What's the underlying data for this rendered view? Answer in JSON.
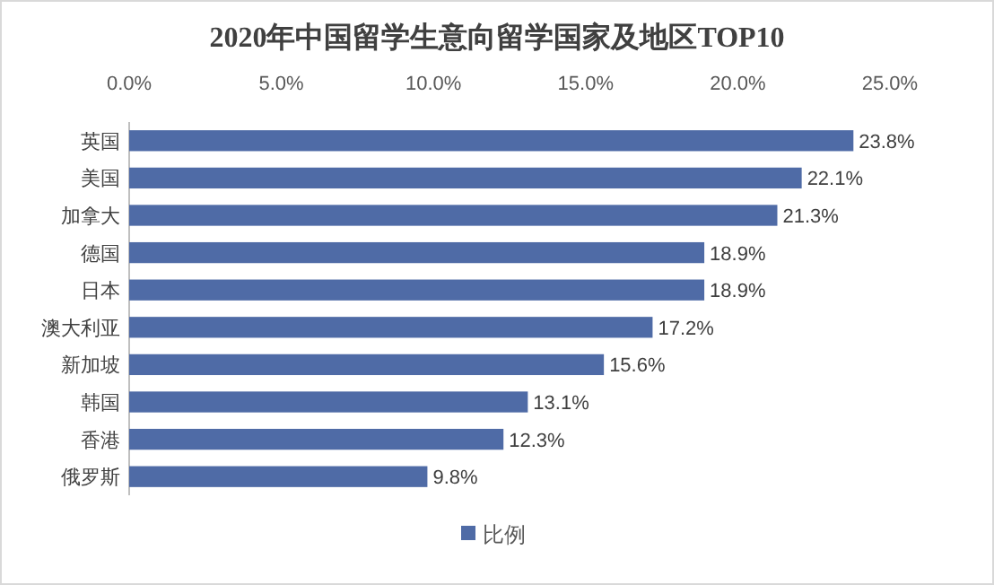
{
  "chart_data": {
    "type": "bar",
    "orientation": "horizontal",
    "title": "2020年中国留学生意向留学国家及地区TOP10",
    "categories": [
      "英国",
      "美国",
      "加拿大",
      "德国",
      "日本",
      "澳大利亚",
      "新加坡",
      "韩国",
      "香港",
      "俄罗斯"
    ],
    "series": [
      {
        "name": "比例",
        "color": "#4f6ba6",
        "values": [
          23.8,
          22.1,
          21.3,
          18.9,
          18.9,
          17.2,
          15.6,
          13.1,
          12.3,
          9.8
        ],
        "value_labels": [
          "23.8%",
          "22.1%",
          "21.3%",
          "18.9%",
          "18.9%",
          "17.2%",
          "15.6%",
          "13.1%",
          "12.3%",
          "9.8%"
        ]
      }
    ],
    "xlim": [
      0,
      25
    ],
    "xticks": [
      {
        "value": 0,
        "label": "0.0%"
      },
      {
        "value": 5,
        "label": "5.0%"
      },
      {
        "value": 10,
        "label": "10.0%"
      },
      {
        "value": 15,
        "label": "15.0%"
      },
      {
        "value": 20,
        "label": "20.0%"
      },
      {
        "value": 25,
        "label": "25.0%"
      }
    ],
    "grid": false,
    "legend": "bottom"
  }
}
